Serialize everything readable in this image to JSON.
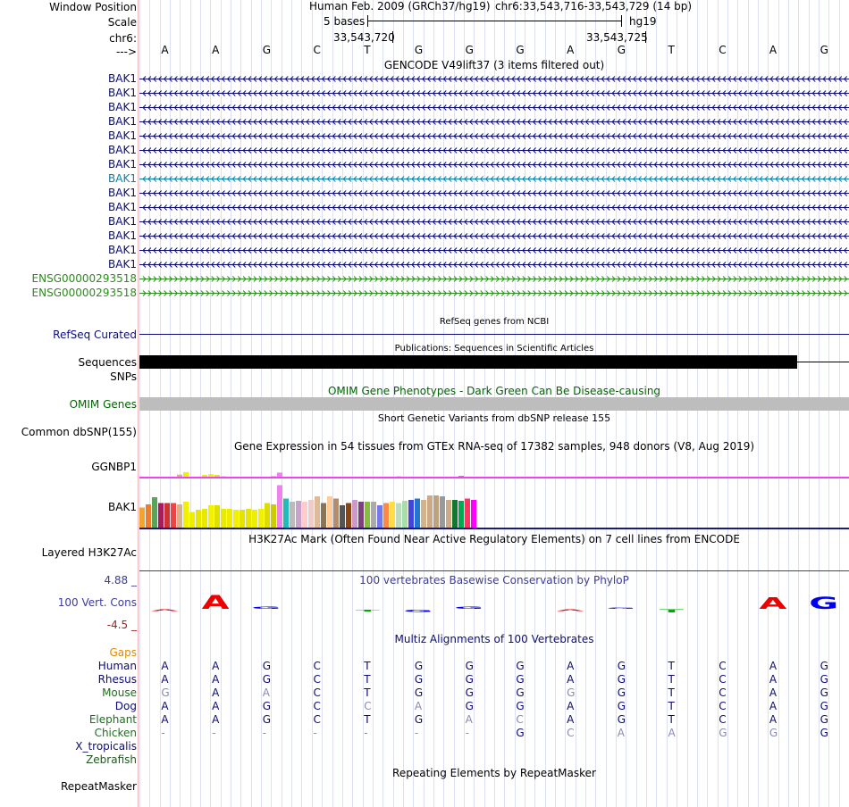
{
  "header": {
    "window_position_label": "Window Position",
    "scale_label": "Scale",
    "chrom_label": "chr6:",
    "strand_label": "--->",
    "assembly_title": "Human Feb. 2009 (GRCh37/hg19)",
    "position_text": "chr6:33,543,716-33,543,729 (14 bp)",
    "scale_text": "5 bases",
    "db_name": "hg19",
    "coord_1": "33,543,720",
    "coord_2": "33,543,725"
  },
  "sequence": [
    "A",
    "A",
    "G",
    "C",
    "T",
    "G",
    "G",
    "G",
    "A",
    "G",
    "T",
    "C",
    "A",
    "G"
  ],
  "tracks": {
    "gencode": {
      "title": "GENCODE V49lift37 (3 items filtered out)",
      "transcripts": [
        {
          "name": "BAK1",
          "color": "#0c0c78",
          "direction": "reverse"
        },
        {
          "name": "BAK1",
          "color": "#0c0c78",
          "direction": "reverse"
        },
        {
          "name": "BAK1",
          "color": "#0c0c78",
          "direction": "reverse"
        },
        {
          "name": "BAK1",
          "color": "#0c0c78",
          "direction": "reverse"
        },
        {
          "name": "BAK1",
          "color": "#0c0c78",
          "direction": "reverse"
        },
        {
          "name": "BAK1",
          "color": "#0c0c78",
          "direction": "reverse"
        },
        {
          "name": "BAK1",
          "color": "#0c0c78",
          "direction": "reverse"
        },
        {
          "name": "BAK1",
          "color": "#0d7fa3",
          "direction": "reverse"
        },
        {
          "name": "BAK1",
          "color": "#0c0c78",
          "direction": "reverse"
        },
        {
          "name": "BAK1",
          "color": "#0c0c78",
          "direction": "reverse"
        },
        {
          "name": "BAK1",
          "color": "#0c0c78",
          "direction": "reverse"
        },
        {
          "name": "BAK1",
          "color": "#0c0c78",
          "direction": "reverse"
        },
        {
          "name": "BAK1",
          "color": "#0c0c78",
          "direction": "reverse"
        },
        {
          "name": "BAK1",
          "color": "#0c0c78",
          "direction": "reverse"
        },
        {
          "name": "ENSG00000293518",
          "color": "#2e8b1e",
          "direction": "forward"
        },
        {
          "name": "ENSG00000293518",
          "color": "#2e8b1e",
          "direction": "forward"
        }
      ]
    },
    "refseq": {
      "title": "RefSeq genes from NCBI",
      "label": "RefSeq Curated"
    },
    "publications": {
      "title": "Publications: Sequences in Scientific Articles",
      "seq_label": "Sequences",
      "snp_label": "SNPs"
    },
    "omim": {
      "title": "OMIM Gene Phenotypes - Dark Green Can Be Disease-causing",
      "label": "OMIM Genes"
    },
    "dbsnp": {
      "title": "Short Genetic Variants from dbSNP release 155",
      "label": "Common dbSNP(155)"
    },
    "gtex": {
      "title": "Gene Expression in 54 tissues from GTEx RNA-seq of 17382 samples, 948 donors (V8, Aug 2019)",
      "gene_1": "GGNBP1",
      "gene_2": "BAK1",
      "ggnbp1_values": [
        0,
        0,
        0,
        0,
        0,
        0,
        0.12,
        0.22,
        0,
        0,
        0.1,
        0.14,
        0.1,
        0.06,
        0,
        0,
        0,
        0,
        0,
        0,
        0,
        0.06,
        0.2,
        0,
        0,
        0,
        0,
        0,
        0,
        0,
        0,
        0,
        0,
        0,
        0,
        0,
        0,
        0,
        0,
        0,
        0,
        0.06,
        0,
        0,
        0,
        0,
        0,
        0,
        0,
        0,
        0,
        0.06,
        0,
        0
      ],
      "bak1_values": [
        0.45,
        0.52,
        0.68,
        0.55,
        0.55,
        0.55,
        0.52,
        0.58,
        0.35,
        0.4,
        0.42,
        0.5,
        0.5,
        0.42,
        0.42,
        0.4,
        0.4,
        0.42,
        0.4,
        0.42,
        0.55,
        0.52,
        0.95,
        0.65,
        0.58,
        0.6,
        0.58,
        0.62,
        0.7,
        0.55,
        0.7,
        0.65,
        0.5,
        0.55,
        0.62,
        0.58,
        0.58,
        0.58,
        0.5,
        0.55,
        0.58,
        0.55,
        0.6,
        0.62,
        0.65,
        0.62,
        0.72,
        0.72,
        0.7,
        0.62,
        0.62,
        0.6,
        0.65,
        0.62
      ],
      "colors": [
        "#f4a331",
        "#ef7c2a",
        "#5aa45a",
        "#a61c5c",
        "#cc3333",
        "#ee4444",
        "#d9b08c",
        "#f0f000",
        "#eeee00",
        "#e6e600",
        "#e8e800",
        "#f2f200",
        "#e0e000",
        "#eaea00",
        "#ecec00",
        "#f0f000",
        "#e4e400",
        "#e6e600",
        "#eeee00",
        "#f0f000",
        "#dcdc00",
        "#cccc00",
        "#ee82ee",
        "#22bbbb",
        "#bbbbbb",
        "#c8a2c8",
        "#ffcccc",
        "#eecccc",
        "#ddbb99",
        "#8b7355",
        "#ffcc99",
        "#b38e6e",
        "#555555",
        "#8b4513",
        "#cc99cc",
        "#7f3f7f",
        "#88bb44",
        "#aaaaaa",
        "#7777ee",
        "#ff8844",
        "#ffdd44",
        "#bbddbb",
        "#aaddaa",
        "#4444dd",
        "#2277cc",
        "#d2b48c",
        "#cfa888",
        "#bfa080",
        "#999999",
        "#ccaa88",
        "#117733",
        "#00aa55",
        "#ff3366",
        "#ff00ff"
      ]
    },
    "h3k27ac": {
      "title": "H3K27Ac Mark (Often Found Near Active Regulatory Elements) on 7 cell lines from ENCODE",
      "label": "Layered H3K27Ac"
    },
    "phylop": {
      "title": "100 vertebrates Basewise Conservation by PhyloP",
      "label": "100 Vert. Cons",
      "ymax": "4.88 _",
      "ymin": "-4.5 _",
      "scores": [
        -0.25,
        2.5,
        0.35,
        0,
        -0.3,
        -0.4,
        0.4,
        0,
        -0.25,
        0.2,
        -0.5,
        0,
        2.0,
        2.2
      ],
      "base_colors": {
        "A": "#ee0000",
        "C": "#0000cc",
        "G": "#0000ee",
        "T": "#00aa00"
      }
    },
    "multiz": {
      "title": "Multiz Alignments of 100 Vertebrates",
      "gaps_label": "Gaps",
      "species": [
        {
          "name": "Human",
          "bases": [
            "A",
            "A",
            "G",
            "C",
            "T",
            "G",
            "G",
            "G",
            "A",
            "G",
            "T",
            "C",
            "A",
            "G"
          ],
          "faded": [
            0,
            0,
            0,
            0,
            0,
            0,
            0,
            0,
            0,
            0,
            0,
            0,
            0,
            0
          ]
        },
        {
          "name": "Rhesus",
          "bases": [
            "A",
            "A",
            "G",
            "C",
            "T",
            "G",
            "G",
            "G",
            "A",
            "G",
            "T",
            "C",
            "A",
            "G"
          ],
          "faded": [
            0,
            0,
            0,
            0,
            0,
            0,
            0,
            0,
            0,
            0,
            0,
            0,
            0,
            0
          ]
        },
        {
          "name": "Mouse",
          "bases": [
            "G",
            "A",
            "A",
            "C",
            "T",
            "G",
            "G",
            "G",
            "G",
            "G",
            "T",
            "C",
            "A",
            "G"
          ],
          "faded": [
            1,
            0,
            1,
            0,
            0,
            0,
            0,
            0,
            1,
            0,
            0,
            0,
            0,
            0
          ]
        },
        {
          "name": "Dog",
          "bases": [
            "A",
            "A",
            "G",
            "C",
            "C",
            "A",
            "G",
            "G",
            "A",
            "G",
            "T",
            "C",
            "A",
            "G"
          ],
          "faded": [
            0,
            0,
            0,
            0,
            1,
            1,
            0,
            0,
            0,
            0,
            0,
            0,
            0,
            0
          ]
        },
        {
          "name": "Elephant",
          "bases": [
            "A",
            "A",
            "G",
            "C",
            "T",
            "G",
            "A",
            "C",
            "A",
            "G",
            "T",
            "C",
            "A",
            "G"
          ],
          "faded": [
            0,
            0,
            0,
            0,
            0,
            0,
            1,
            1,
            0,
            0,
            0,
            0,
            0,
            0
          ]
        },
        {
          "name": "Chicken",
          "bases": [
            "-",
            "-",
            "-",
            "-",
            "-",
            "-",
            "-",
            "G",
            "C",
            "A",
            "A",
            "G",
            "G",
            "G"
          ],
          "faded": [
            1,
            1,
            1,
            1,
            1,
            1,
            1,
            0,
            1,
            1,
            1,
            1,
            1,
            0
          ]
        },
        {
          "name": "X_tropicalis",
          "bases": [
            "",
            "",
            "",
            "",
            "",
            "",
            "",
            "",
            "",
            "",
            "",
            "",
            "",
            ""
          ],
          "faded": [
            0,
            0,
            0,
            0,
            0,
            0,
            0,
            0,
            0,
            0,
            0,
            0,
            0,
            0
          ]
        },
        {
          "name": "Zebrafish",
          "bases": [
            "",
            "",
            "",
            "",
            "",
            "",
            "",
            "",
            "",
            "",
            "",
            "",
            "",
            ""
          ],
          "faded": [
            0,
            0,
            0,
            0,
            0,
            0,
            0,
            0,
            0,
            0,
            0,
            0,
            0,
            0
          ]
        }
      ]
    },
    "repeatmasker": {
      "title": "Repeating Elements by RepeatMasker",
      "label": "RepeatMasker"
    }
  }
}
